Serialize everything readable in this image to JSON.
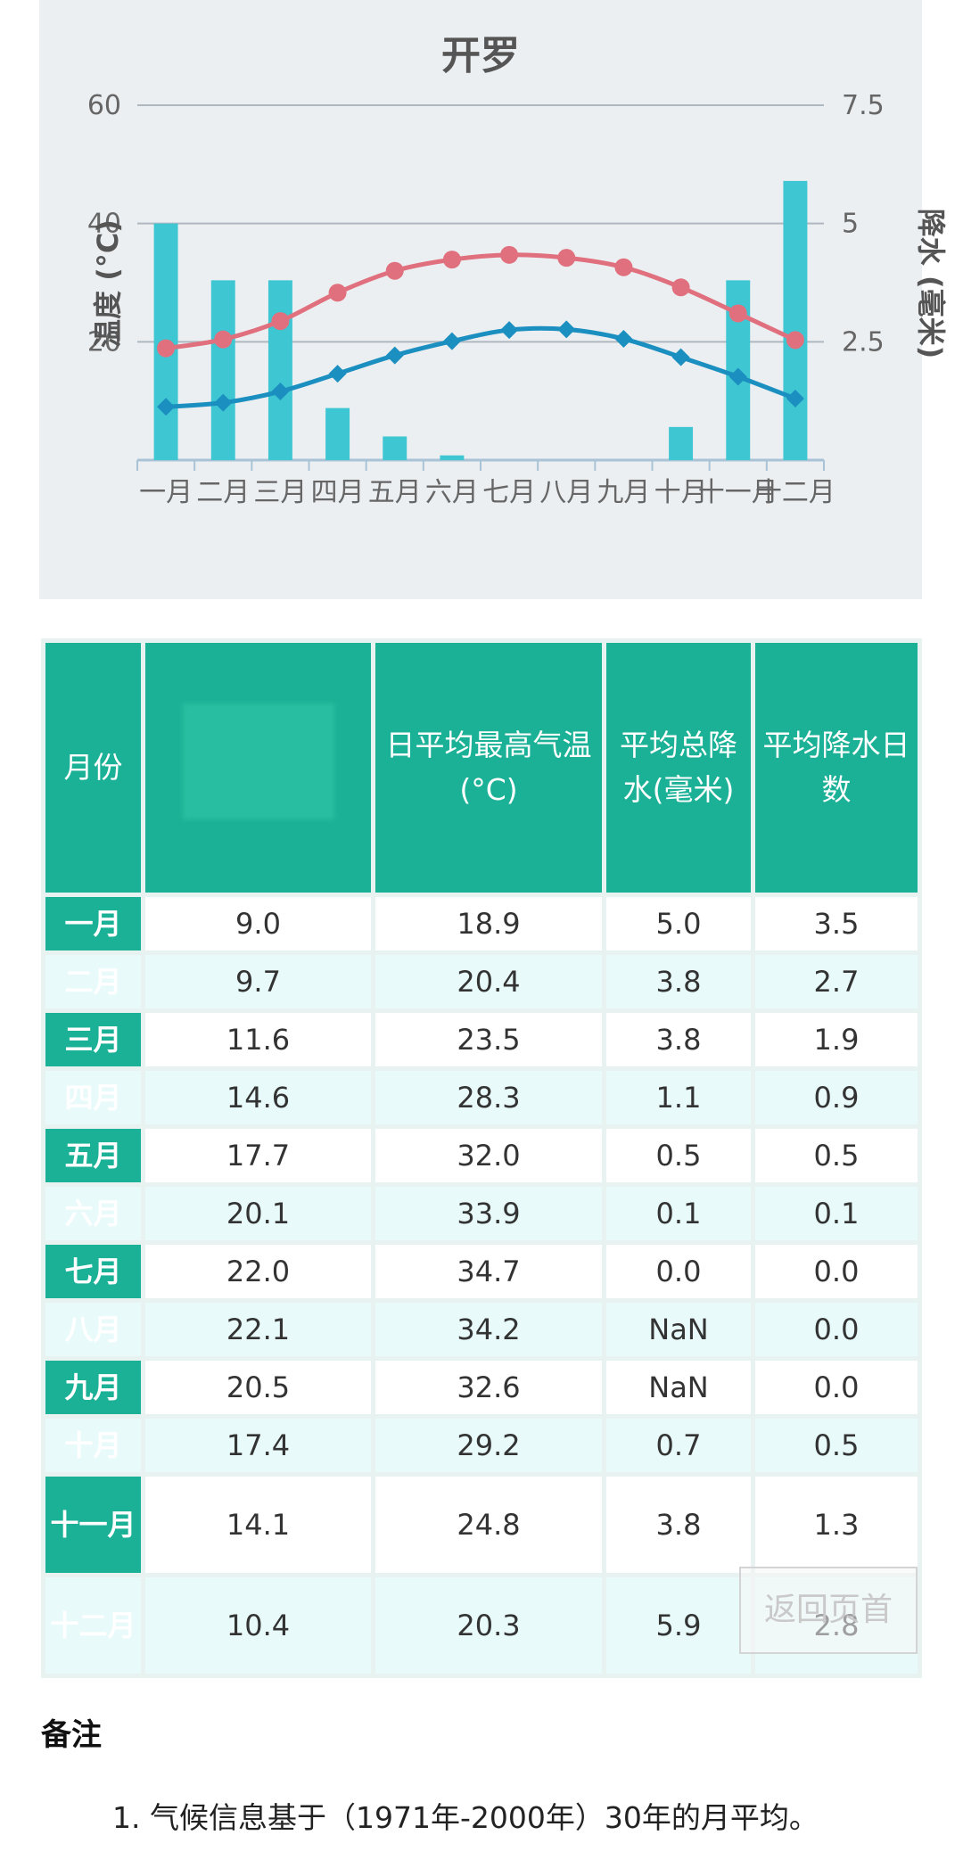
{
  "chart_data": {
    "type": "bar",
    "title": "开罗",
    "ylabel": "温度 (°C)",
    "ylabel_right": "降水 (毫米)",
    "ylim": [
      0,
      60
    ],
    "ylim_right": [
      0,
      7.5
    ],
    "yticks": [
      "20",
      "40",
      "60"
    ],
    "yticks_right": [
      "2.5",
      "5",
      "7.5"
    ],
    "categories": [
      "一月",
      "二月",
      "三月",
      "四月",
      "五月",
      "六月",
      "七月",
      "八月",
      "九月",
      "十月",
      "十一月",
      "十二月"
    ],
    "series": [
      {
        "type": "bar",
        "axis": "right",
        "values": [
          5.0,
          3.8,
          3.8,
          1.1,
          0.5,
          0.1,
          0.0,
          0.0,
          0.0,
          0.7,
          3.8,
          5.9
        ],
        "color": "#3fc6d3"
      },
      {
        "type": "line",
        "axis": "left",
        "marker": "circle",
        "values": [
          18.9,
          20.4,
          23.5,
          28.3,
          32.0,
          33.9,
          34.7,
          34.2,
          32.6,
          29.2,
          24.8,
          20.3
        ],
        "color": "#e0707e"
      },
      {
        "type": "line",
        "axis": "left",
        "marker": "diamond",
        "values": [
          9.0,
          9.7,
          11.6,
          14.6,
          17.7,
          20.1,
          22.0,
          22.1,
          20.5,
          17.4,
          14.1,
          10.4
        ],
        "color": "#1b8fbf"
      }
    ],
    "grid": true,
    "legend": "none"
  },
  "table": {
    "headers": [
      "月份",
      "",
      "日平均最高气温 (°C)",
      "平均总降水(毫米)",
      "平均降水日数"
    ],
    "rows": [
      {
        "month": "一月",
        "low": "9.0",
        "high": "18.9",
        "precip": "5.0",
        "days": "3.5"
      },
      {
        "month": "二月",
        "low": "9.7",
        "high": "20.4",
        "precip": "3.8",
        "days": "2.7"
      },
      {
        "month": "三月",
        "low": "11.6",
        "high": "23.5",
        "precip": "3.8",
        "days": "1.9"
      },
      {
        "month": "四月",
        "low": "14.6",
        "high": "28.3",
        "precip": "1.1",
        "days": "0.9"
      },
      {
        "month": "五月",
        "low": "17.7",
        "high": "32.0",
        "precip": "0.5",
        "days": "0.5"
      },
      {
        "month": "六月",
        "low": "20.1",
        "high": "33.9",
        "precip": "0.1",
        "days": "0.1"
      },
      {
        "month": "七月",
        "low": "22.0",
        "high": "34.7",
        "precip": "0.0",
        "days": "0.0"
      },
      {
        "month": "八月",
        "low": "22.1",
        "high": "34.2",
        "precip": "NaN",
        "days": "0.0"
      },
      {
        "month": "九月",
        "low": "20.5",
        "high": "32.6",
        "precip": "NaN",
        "days": "0.0"
      },
      {
        "month": "十月",
        "low": "17.4",
        "high": "29.2",
        "precip": "0.7",
        "days": "0.5"
      },
      {
        "month": "十一月",
        "low": "14.1",
        "high": "24.8",
        "precip": "3.8",
        "days": "1.3"
      },
      {
        "month": "十二月",
        "low": "10.4",
        "high": "20.3",
        "precip": "5.9",
        "days": "2.8"
      }
    ]
  },
  "back_button": "返回页首",
  "notes": {
    "heading": "备注",
    "items": [
      "1. 气候信息基于（1971年-2000年）30年的月平均。"
    ]
  },
  "colors": {
    "bar": "#3fc6d3",
    "high_line": "#e0707e",
    "low_line": "#1b8fbf",
    "header_bg": "#1bb196"
  }
}
